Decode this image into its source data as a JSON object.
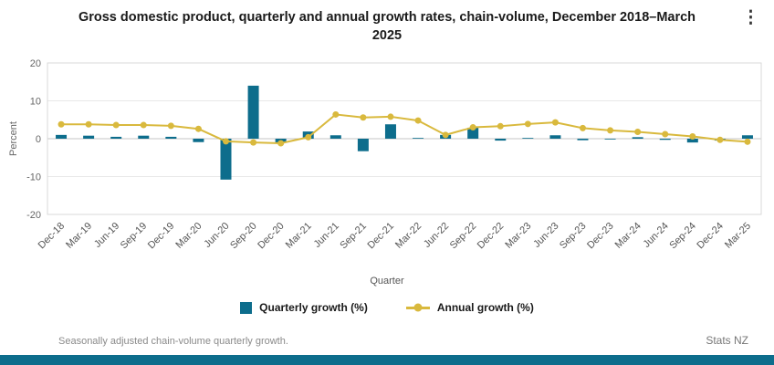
{
  "header": {
    "title": "Gross domestic product, quarterly and annual growth rates, chain-volume, December 2018–March 2025",
    "menu_icon": "kebab-menu-icon"
  },
  "chart_data": {
    "type": "bar",
    "subtype": "combo-bar-line",
    "title": "Gross domestic product, quarterly and annual growth rates, chain-volume, December 2018–March 2025",
    "xlabel": "Quarter",
    "ylabel": "Percent",
    "ylim": [
      -20,
      20
    ],
    "yticks": [
      -20,
      -10,
      0,
      10,
      20
    ],
    "grid": true,
    "legend_position": "bottom",
    "categories": [
      "Dec-18",
      "Mar-19",
      "Jun-19",
      "Sep-19",
      "Dec-19",
      "Mar-20",
      "Jun-20",
      "Sep-20",
      "Dec-20",
      "Mar-21",
      "Jun-21",
      "Sep-21",
      "Dec-21",
      "Mar-22",
      "Jun-22",
      "Sep-22",
      "Dec-22",
      "Mar-23",
      "Jun-23",
      "Sep-23",
      "Dec-23",
      "Mar-24",
      "Jun-24",
      "Sep-24",
      "Dec-24",
      "Mar-25"
    ],
    "series": [
      {
        "name": "Quarterly growth (%)",
        "type": "bar",
        "color": "#0d6d8c",
        "values": [
          1.0,
          0.8,
          0.5,
          0.8,
          0.5,
          -0.9,
          -10.8,
          14.0,
          -1.0,
          1.9,
          0.9,
          -3.3,
          3.8,
          0.2,
          1.0,
          2.9,
          -0.5,
          0.2,
          0.9,
          -0.4,
          -0.2,
          0.4,
          -0.3,
          -1.0,
          -0.5,
          0.9
        ]
      },
      {
        "name": "Annual growth (%)",
        "type": "line",
        "color": "#d9b93d",
        "values": [
          3.8,
          3.8,
          3.6,
          3.6,
          3.4,
          2.6,
          -0.7,
          -1.0,
          -1.2,
          0.4,
          6.4,
          5.6,
          5.8,
          4.8,
          1.0,
          3.0,
          3.3,
          3.9,
          4.3,
          2.8,
          2.2,
          1.8,
          1.2,
          0.6,
          -0.3,
          -0.8
        ]
      }
    ]
  },
  "footer": {
    "note": "Seasonally adjusted chain-volume quarterly growth.",
    "attribution": "Stats NZ"
  },
  "colors": {
    "accent_teal": "#0d6d8c",
    "accent_gold": "#d9b93d",
    "grid": "#e8e8e8",
    "border": "#d9d9d9"
  }
}
